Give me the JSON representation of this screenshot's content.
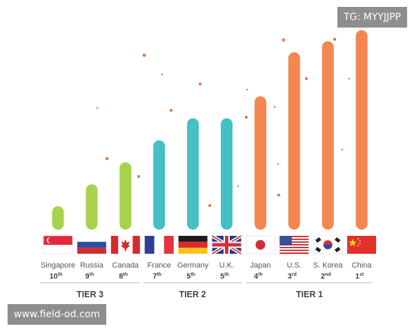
{
  "chart_data": {
    "type": "bar",
    "categories": [
      "Singapore",
      "Russia",
      "Canada",
      "France",
      "Germany",
      "U.K.",
      "Japan",
      "U.S.",
      "S. Korea",
      "China"
    ],
    "values": [
      10,
      20,
      30,
      40,
      50,
      50,
      60,
      80,
      85,
      90
    ],
    "value_note": "bar lengths are relative; no value axis is printed",
    "ranks": [
      {
        "num": "10",
        "suffix": "th"
      },
      {
        "num": "9",
        "suffix": "th"
      },
      {
        "num": "8",
        "suffix": "th"
      },
      {
        "num": "7",
        "suffix": "th"
      },
      {
        "num": "5",
        "suffix": "th"
      },
      {
        "num": "5",
        "suffix": "th"
      },
      {
        "num": "4",
        "suffix": "th"
      },
      {
        "num": "3",
        "suffix": "rd"
      },
      {
        "num": "2",
        "suffix": "nd"
      },
      {
        "num": "1",
        "suffix": "st"
      }
    ],
    "tier_of_bar": [
      3,
      3,
      3,
      2,
      2,
      2,
      1,
      1,
      1,
      1
    ],
    "tiers": [
      {
        "label": "TIER 3",
        "color": "#a8d14d"
      },
      {
        "label": "TIER 2",
        "color": "#45c0c5"
      },
      {
        "label": "TIER 1",
        "color": "#f5864f"
      }
    ],
    "grid": false,
    "legend": "none",
    "title": "",
    "xlabel": "",
    "ylabel": ""
  },
  "flags": [
    "singapore-flag",
    "russia-flag",
    "canada-flag",
    "france-flag",
    "germany-flag",
    "uk-flag",
    "japan-flag",
    "us-flag",
    "south-korea-flag",
    "china-flag"
  ],
  "watermarks": {
    "top_right": "TG: MYYJJPP",
    "bottom_left": "www.field-od.com"
  },
  "colors": {
    "dot": "#d97e4f",
    "divider": "#bbbbbb",
    "label": "#555555",
    "tier_label": "#444444"
  }
}
